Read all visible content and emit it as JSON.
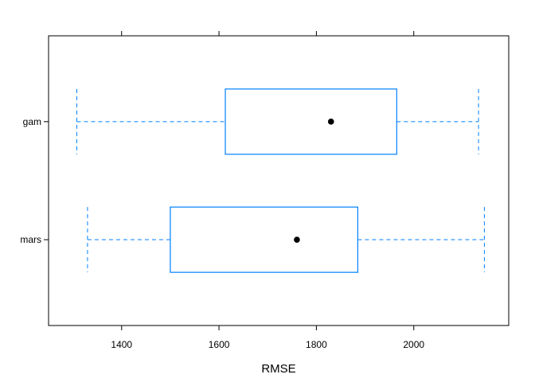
{
  "chart_data": {
    "type": "box",
    "orientation": "horizontal",
    "title": "",
    "xlabel": "RMSE",
    "ylabel": "",
    "xlim": [
      1250,
      2195
    ],
    "x_ticks": [
      1400,
      1600,
      1800,
      2000
    ],
    "x_tick_labels": [
      "1400",
      "1600",
      "1800",
      "2000"
    ],
    "top_axis_ticks": true,
    "grid": false,
    "legend": "none",
    "categories": [
      "mars",
      "gam"
    ],
    "boxes": [
      {
        "category": "mars",
        "whisker_low": 1330,
        "q1": 1500,
        "median": 1760,
        "q3": 1885,
        "whisker_high": 2145
      },
      {
        "category": "gam",
        "whisker_low": 1308,
        "q1": 1613,
        "median": 1830,
        "q3": 1965,
        "whisker_high": 2133
      }
    ],
    "colors": {
      "box": "#0080ff",
      "whisker": "#0080ff",
      "median_dot": "#000000",
      "axis": "#000000",
      "text": "#000000"
    }
  }
}
